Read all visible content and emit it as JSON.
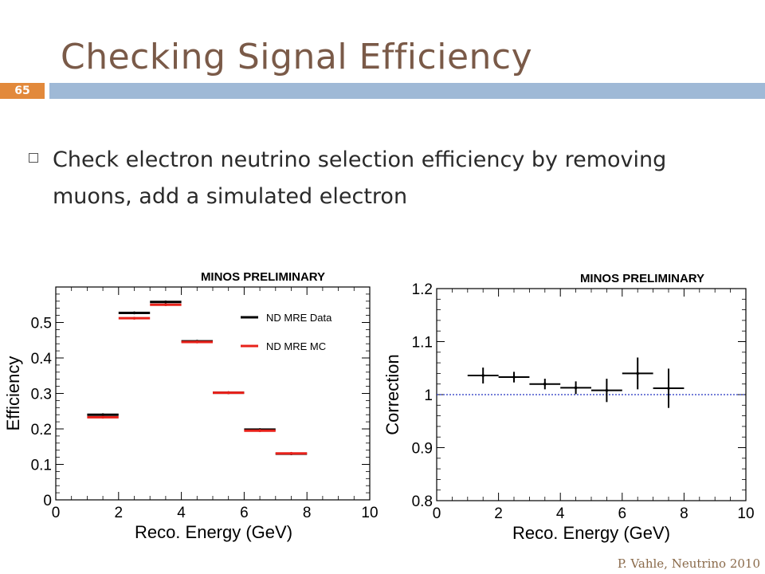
{
  "slide": {
    "title": "Checking Signal Efficiency",
    "number": "65",
    "bullet": "Check electron neutrino selection efficiency by removing muons, add a simulated electron",
    "footer": "P. Vahle, Neutrino 2010"
  },
  "colors": {
    "title": "#7a5a48",
    "bar": "#9fb9d6",
    "number_bg": "#e2893b",
    "data": "#000000",
    "mc": "#e8211a",
    "reference_line": "#2030c0"
  },
  "chart_data": [
    {
      "type": "scatter",
      "title": "MINOS PRELIMINARY",
      "xlabel": "Reco. Energy (GeV)",
      "ylabel": "Efficiency",
      "xlim": [
        0,
        10
      ],
      "ylim": [
        0,
        0.6
      ],
      "xticks": [
        "0",
        "2",
        "4",
        "6",
        "8",
        "10"
      ],
      "yticks": [
        "0",
        "0.1",
        "0.2",
        "0.3",
        "0.4",
        "0.5"
      ],
      "legend": "top-right",
      "series": [
        {
          "name": "ND MRE Data",
          "color": "#000000",
          "x": [
            1.5,
            2.5,
            3.5,
            4.5,
            5.5,
            6.5,
            7.5
          ],
          "y": [
            0.24,
            0.527,
            0.558,
            0.447,
            0.302,
            0.198,
            0.13
          ],
          "xerr": [
            0.5,
            0.5,
            0.5,
            0.5,
            0.5,
            0.5,
            0.5
          ]
        },
        {
          "name": "ND MRE MC",
          "color": "#e8211a",
          "x": [
            1.5,
            2.5,
            3.5,
            4.5,
            5.5,
            6.5,
            7.5
          ],
          "y": [
            0.233,
            0.512,
            0.55,
            0.445,
            0.302,
            0.195,
            0.131
          ],
          "xerr": [
            0.5,
            0.5,
            0.5,
            0.5,
            0.5,
            0.5,
            0.5
          ]
        }
      ]
    },
    {
      "type": "scatter",
      "title": "MINOS PRELIMINARY",
      "xlabel": "Reco. Energy (GeV)",
      "ylabel": "Correction",
      "xlim": [
        0,
        10
      ],
      "ylim": [
        0.8,
        1.2
      ],
      "xticks": [
        "0",
        "2",
        "4",
        "6",
        "8",
        "10"
      ],
      "yticks": [
        "0.8",
        "0.9",
        "1",
        "1.1",
        "1.2"
      ],
      "reference_y": 1,
      "series": [
        {
          "color": "#000000",
          "x": [
            1.5,
            2.5,
            3.5,
            4.5,
            5.5,
            6.5,
            7.5
          ],
          "y": [
            1.036,
            1.033,
            1.02,
            1.013,
            1.008,
            1.04,
            1.012
          ],
          "xerr": [
            0.5,
            0.5,
            0.5,
            0.5,
            0.5,
            0.5,
            0.5
          ],
          "yerr": [
            0.015,
            0.01,
            0.01,
            0.012,
            0.022,
            0.03,
            0.037
          ]
        }
      ]
    }
  ]
}
